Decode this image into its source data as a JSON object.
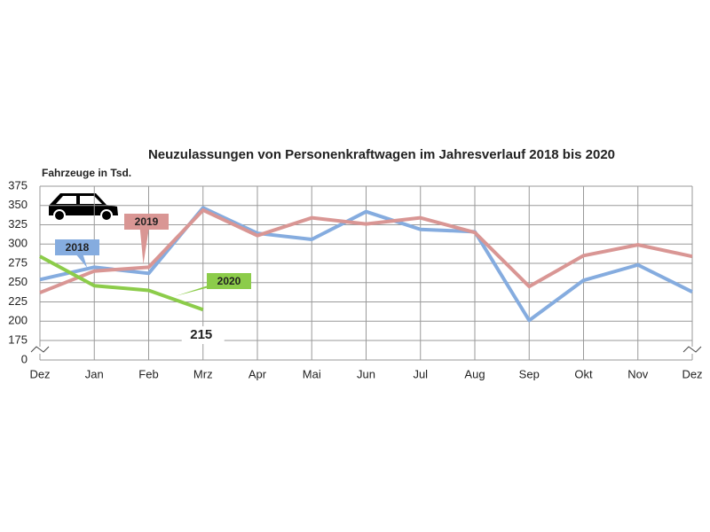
{
  "chart_data": {
    "type": "line",
    "title": "Neuzulassungen von Personenkraftwagen im Jahresverlauf 2018 bis 2020",
    "y_label": "Fahrzeuge in Tsd.",
    "categories": [
      "Dez",
      "Jan",
      "Feb",
      "Mrz",
      "Apr",
      "Mai",
      "Jun",
      "Jul",
      "Aug",
      "Sep",
      "Okt",
      "Nov",
      "Dez"
    ],
    "series": [
      {
        "name": "2018",
        "color": "#85acdf",
        "values": [
          254,
          270,
          262,
          347,
          314,
          306,
          342,
          319,
          316,
          201,
          253,
          273,
          238
        ]
      },
      {
        "name": "2019",
        "color": "#d99694",
        "values": [
          237,
          265,
          270,
          344,
          311,
          334,
          326,
          334,
          315,
          245,
          285,
          299,
          284
        ]
      },
      {
        "name": "2020",
        "color": "#8ccc4a",
        "values": [
          284,
          246,
          240,
          215,
          null,
          null,
          null,
          null,
          null,
          null,
          null,
          null,
          null
        ]
      }
    ],
    "ylim": [
      0,
      375
    ],
    "axis_break": [
      0,
      175
    ],
    "yticks": [
      0,
      175,
      200,
      225,
      250,
      275,
      300,
      325,
      350,
      375
    ],
    "grid": true
  }
}
